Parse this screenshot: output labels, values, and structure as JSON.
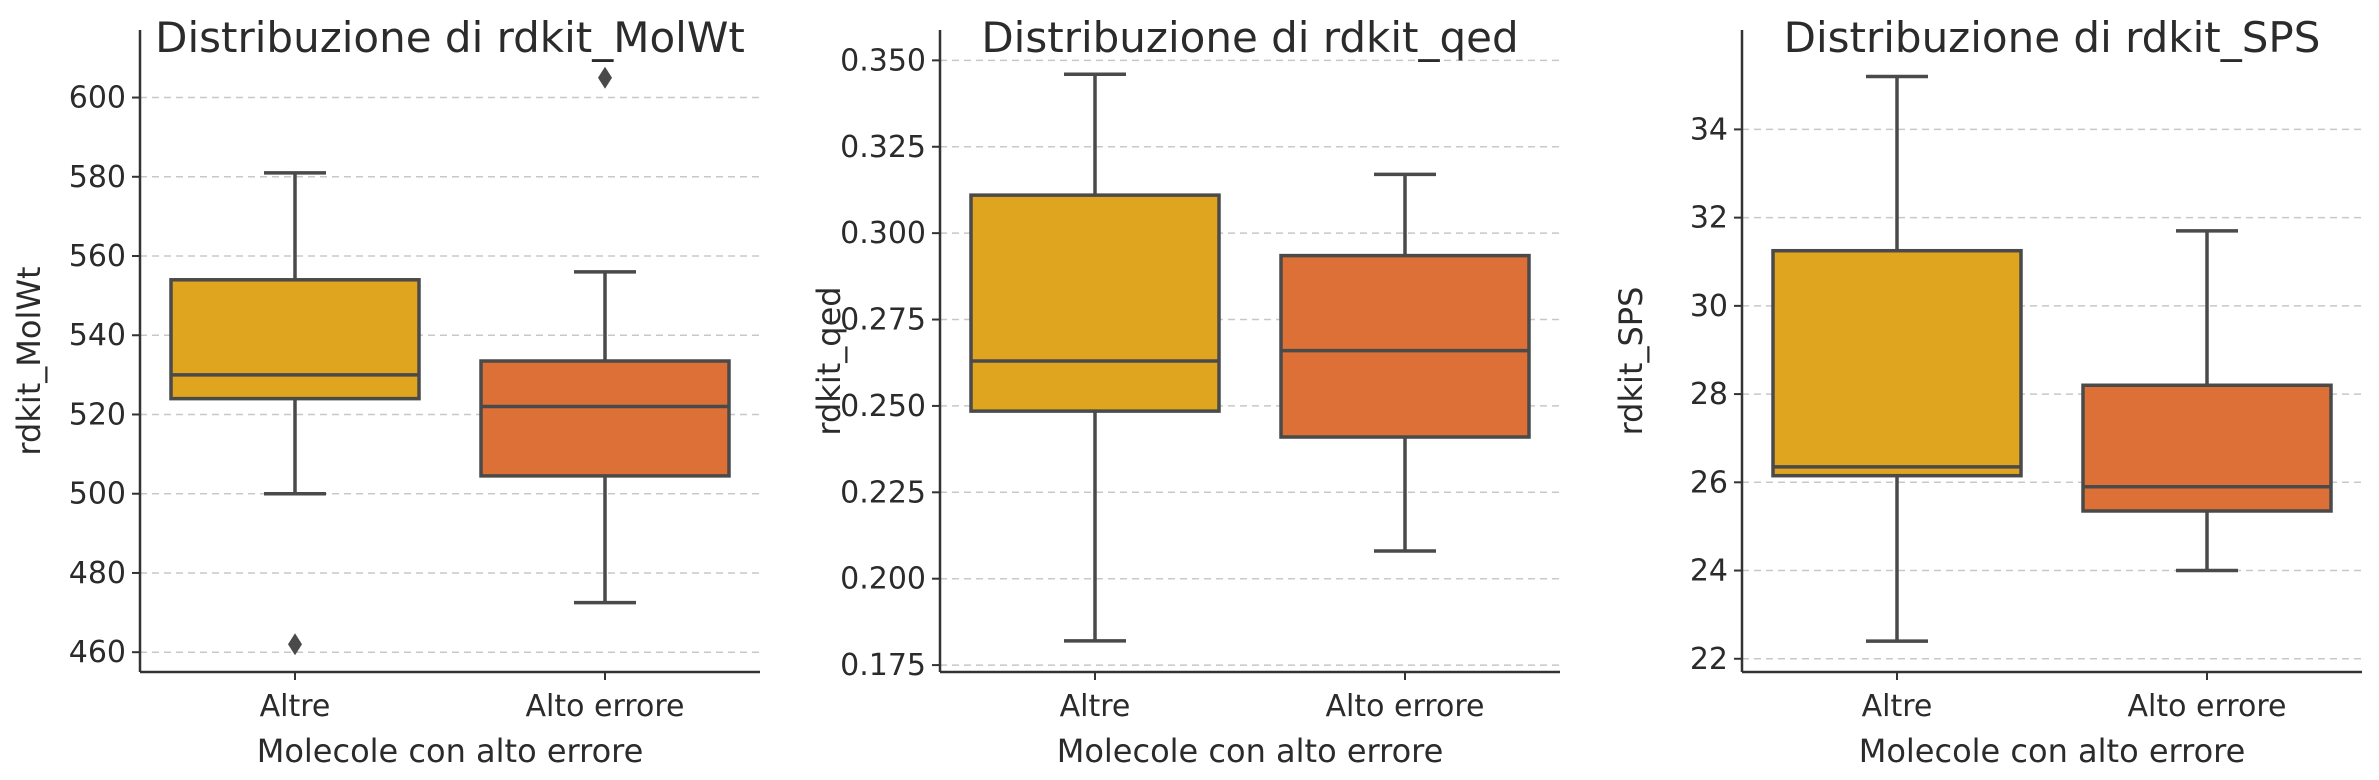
{
  "chart_data": [
    {
      "type": "box",
      "title": "Distribuzione di rdkit_MolWt",
      "xlabel": "Molecole con alto errore",
      "ylabel": "rdkit_MolWt",
      "categories": [
        "Altre",
        "Alto errore"
      ],
      "ylim": [
        455,
        612
      ],
      "yticks": [
        460,
        480,
        500,
        520,
        540,
        560,
        580,
        600
      ],
      "tick_decimals": 0,
      "grid": true,
      "boxes": [
        {
          "category": "Altre",
          "whisker_low": 500,
          "q1": 524,
          "median": 530,
          "q3": 554,
          "whisker_high": 581,
          "outliers": [
            462
          ],
          "color": "#E0A51E"
        },
        {
          "category": "Alto errore",
          "whisker_low": 472.5,
          "q1": 504.5,
          "median": 522,
          "q3": 533.5,
          "whisker_high": 556,
          "outliers": [
            605
          ],
          "color": "#DD7036"
        }
      ]
    },
    {
      "type": "box",
      "title": "Distribuzione di rdkit_qed",
      "xlabel": "Molecole con alto errore",
      "ylabel": "rdkit_qed",
      "categories": [
        "Altre",
        "Alto errore"
      ],
      "ylim": [
        0.173,
        0.353
      ],
      "yticks": [
        0.175,
        0.2,
        0.225,
        0.25,
        0.275,
        0.3,
        0.325,
        0.35
      ],
      "tick_decimals": 3,
      "grid": true,
      "boxes": [
        {
          "category": "Altre",
          "whisker_low": 0.182,
          "q1": 0.2485,
          "median": 0.263,
          "q3": 0.311,
          "whisker_high": 0.346,
          "outliers": [],
          "color": "#E0A51E"
        },
        {
          "category": "Alto errore",
          "whisker_low": 0.208,
          "q1": 0.241,
          "median": 0.266,
          "q3": 0.2935,
          "whisker_high": 0.317,
          "outliers": [],
          "color": "#DD7036"
        }
      ]
    },
    {
      "type": "box",
      "title": "Distribuzione di rdkit_SPS",
      "xlabel": "Molecole con alto errore",
      "ylabel": "rdkit_SPS",
      "categories": [
        "Altre",
        "Alto errore"
      ],
      "ylim": [
        21.7,
        35.8
      ],
      "yticks": [
        22,
        24,
        26,
        28,
        30,
        32,
        34
      ],
      "tick_decimals": 0,
      "grid": true,
      "boxes": [
        {
          "category": "Altre",
          "whisker_low": 22.4,
          "q1": 26.15,
          "median": 26.35,
          "q3": 31.25,
          "whisker_high": 35.2,
          "outliers": [],
          "color": "#E0A51E"
        },
        {
          "category": "Alto errore",
          "whisker_low": 24.0,
          "q1": 25.35,
          "median": 25.9,
          "q3": 28.2,
          "whisker_high": 31.7,
          "outliers": [],
          "color": "#DD7036"
        }
      ]
    }
  ]
}
